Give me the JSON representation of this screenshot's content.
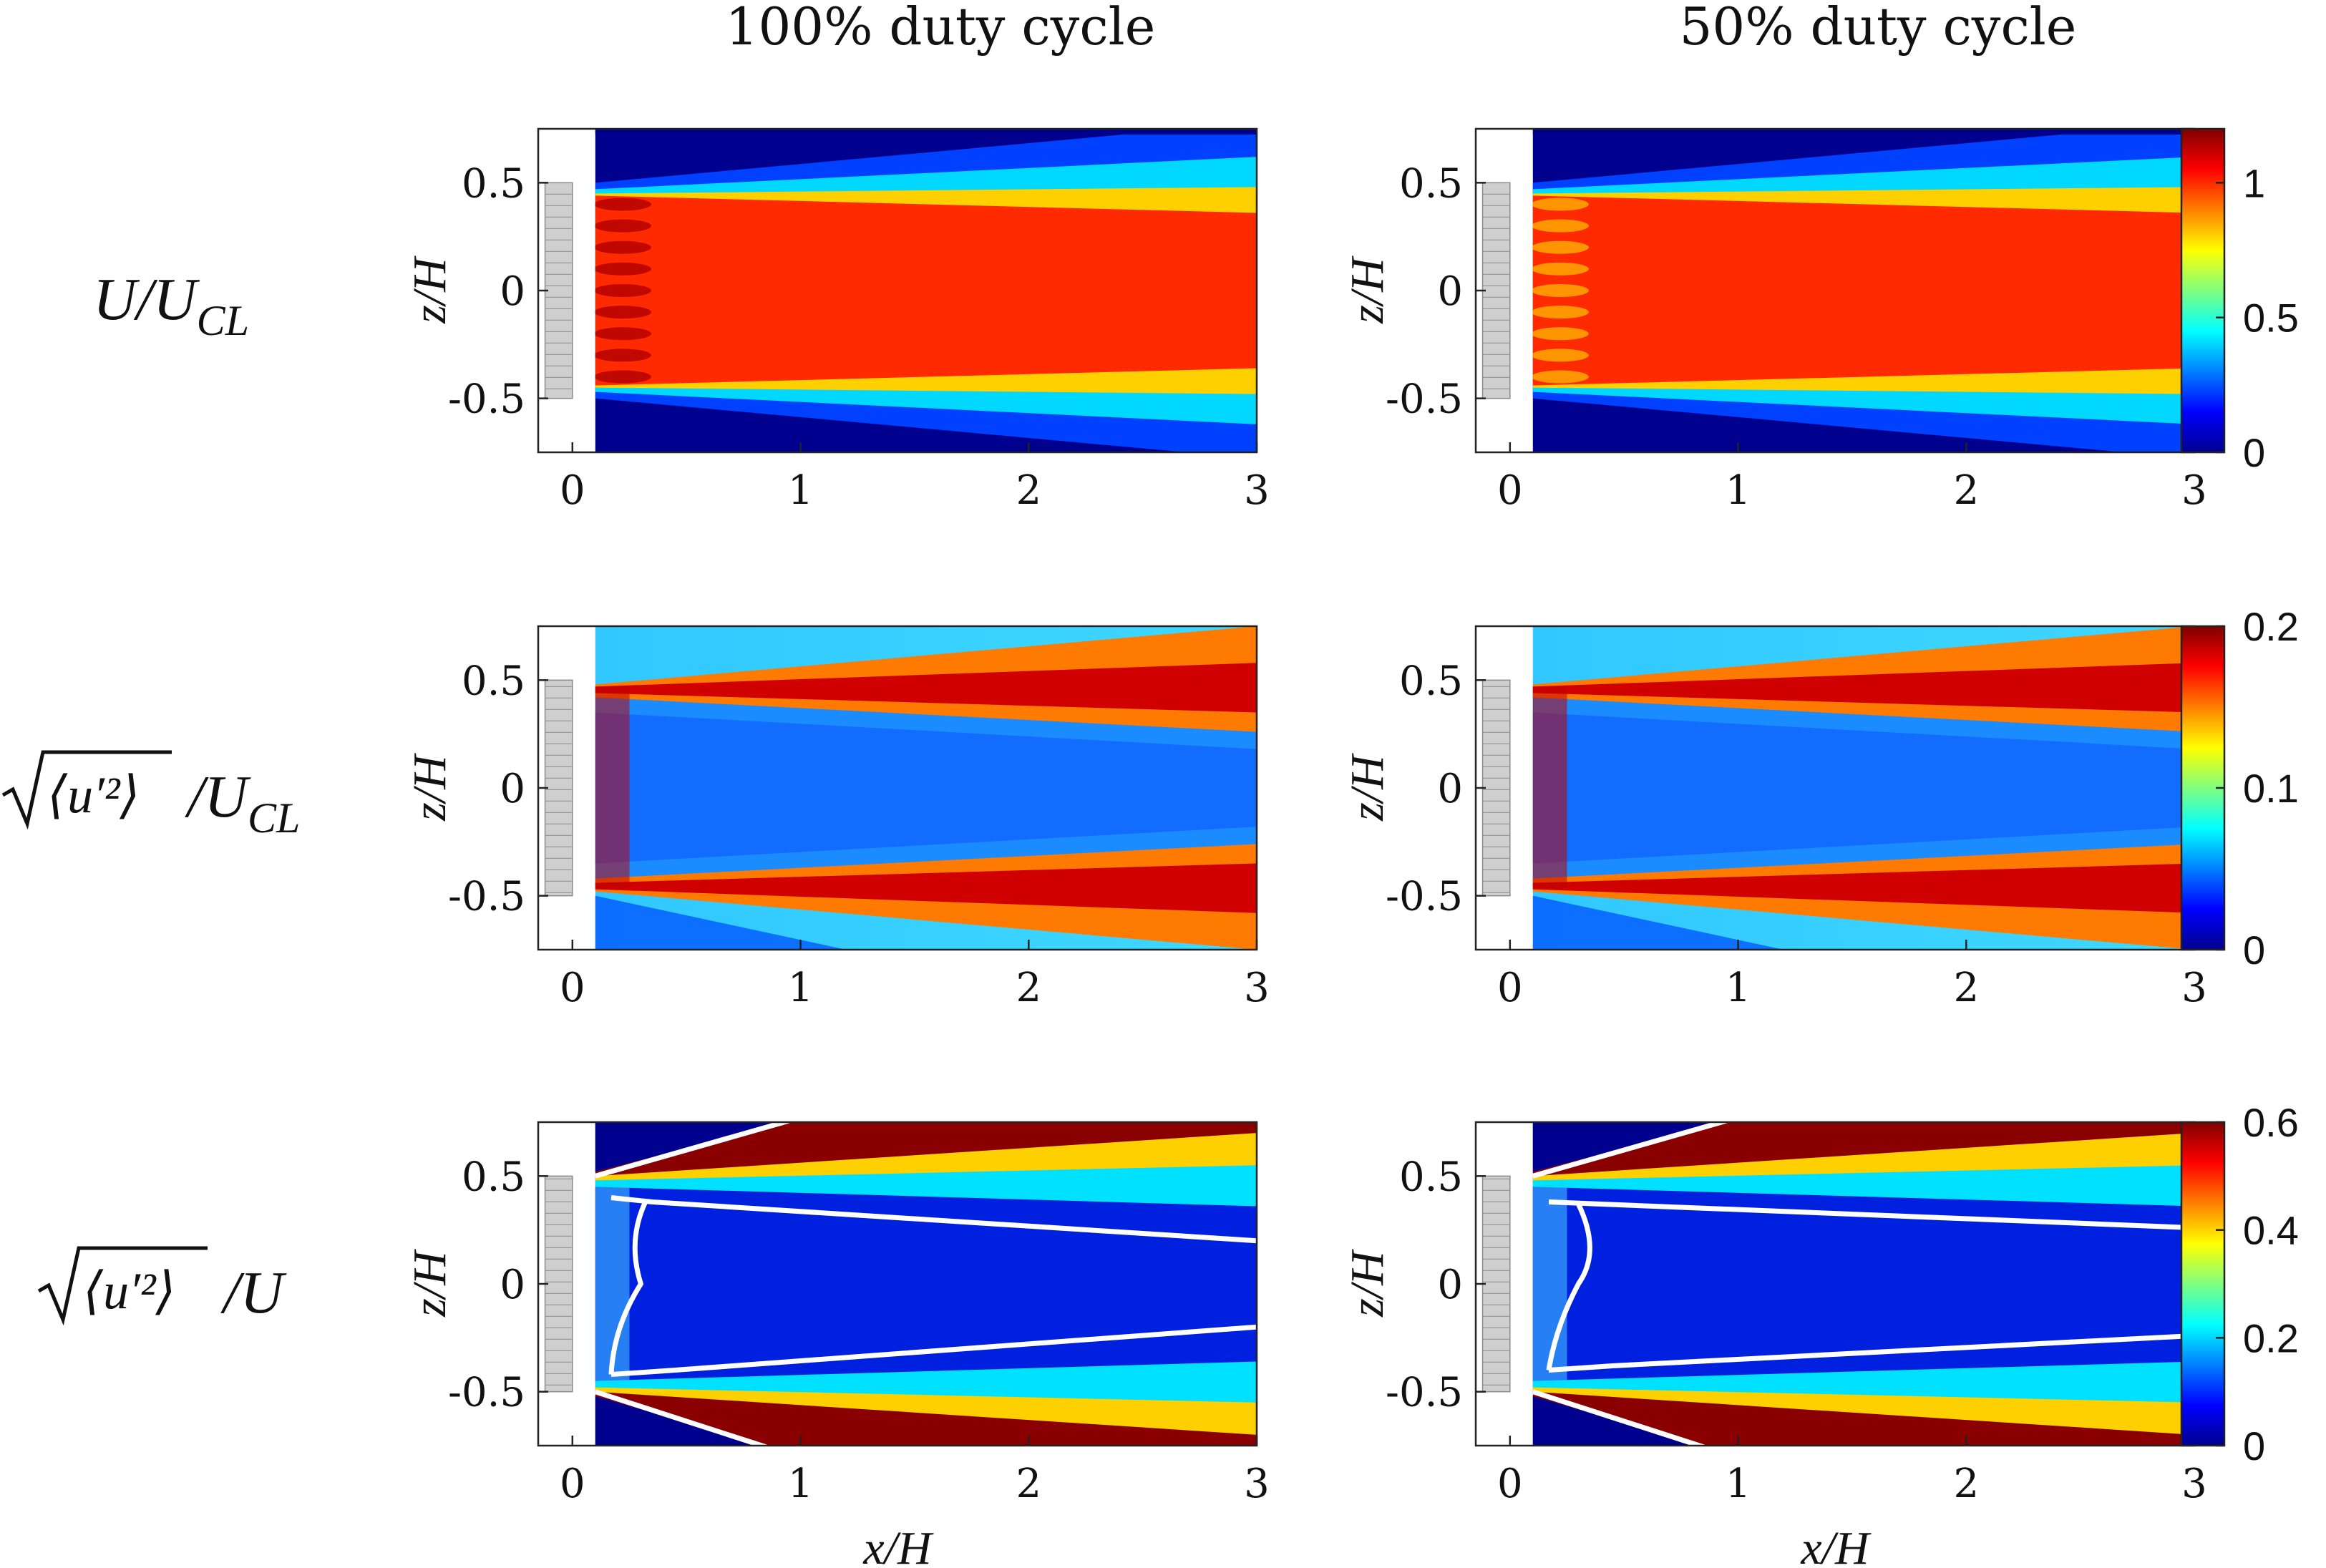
{
  "chart_data": {
    "type": "heatmap",
    "column_titles": [
      "100% duty cycle",
      "50% duty cycle"
    ],
    "x_label": "x/H",
    "y_label": "z/H",
    "x_ticks": [
      "0",
      "1",
      "2",
      "3"
    ],
    "y_ticks": [
      "0.5",
      "0",
      "-0.5"
    ],
    "x_range": [
      -0.15,
      3.0
    ],
    "y_range": [
      -0.75,
      0.75
    ],
    "colormap": "jet",
    "nozzle_height": [
      -0.5,
      0.5
    ],
    "rows": [
      {
        "quantity": "U/U_CL",
        "label_main": "U/U",
        "label_sub": "CL",
        "colorbar": {
          "range": [
            0,
            1.2
          ],
          "ticks": [
            "1",
            "0.5",
            "0"
          ]
        },
        "panels": [
          "100% duty cycle",
          "50% duty cycle"
        ]
      },
      {
        "quantity": "sqrt(<u'^2>)/U_CL",
        "label_main": "/U",
        "label_sub": "CL",
        "label_inner": "⟨u′²⟩",
        "colorbar": {
          "range": [
            0,
            0.2
          ],
          "ticks": [
            "0.2",
            "0.1",
            "0"
          ]
        },
        "panels": [
          "100% duty cycle",
          "50% duty cycle"
        ]
      },
      {
        "quantity": "sqrt(<u'^2>)/U",
        "label_main": "/U",
        "label_sub": "",
        "label_inner": "⟨u′²⟩",
        "colorbar": {
          "range": [
            0,
            0.6
          ],
          "ticks": [
            "0.6",
            "0.4",
            "0.2",
            "0"
          ]
        },
        "panels": [
          "100% duty cycle",
          "50% duty cycle"
        ],
        "white_contours": true
      }
    ]
  }
}
